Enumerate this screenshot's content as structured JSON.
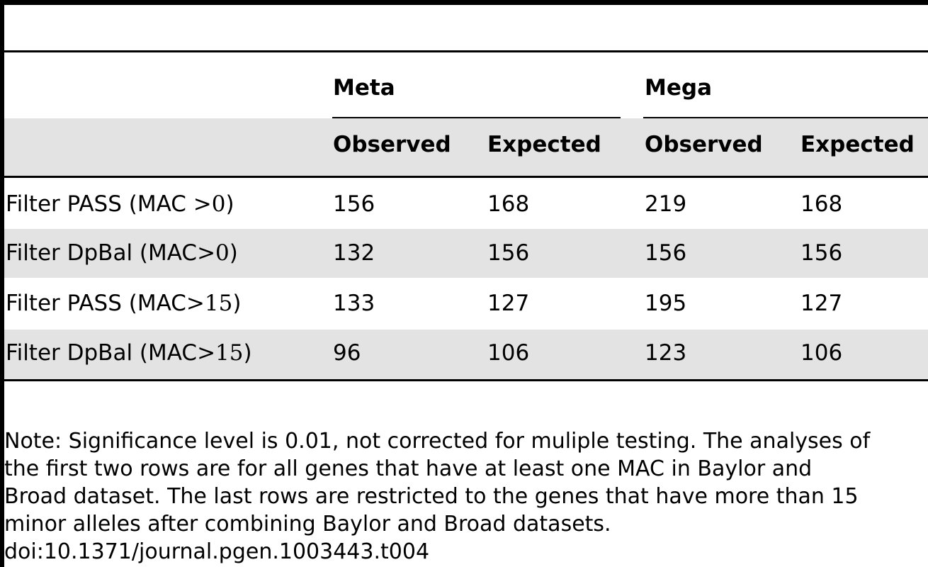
{
  "table": {
    "groups": [
      "Meta",
      "Mega"
    ],
    "columns": [
      "Observed",
      "Expected",
      "Observed",
      "Expected"
    ],
    "rows": [
      {
        "label_prefix": "Filter PASS (MAC ",
        "op": ">",
        "threshold": "0",
        "label_suffix": ")",
        "values": [
          "156",
          "168",
          "219",
          "168"
        ]
      },
      {
        "label_prefix": "Filter DpBal (MAC",
        "op": ">",
        "threshold": "0",
        "label_suffix": ")",
        "values": [
          "132",
          "156",
          "156",
          "156"
        ]
      },
      {
        "label_prefix": "Filter PASS (MAC",
        "op": ">",
        "threshold": "15",
        "label_suffix": ")",
        "values": [
          "133",
          "127",
          "195",
          "127"
        ]
      },
      {
        "label_prefix": "Filter DpBal (MAC",
        "op": ">",
        "threshold": "15",
        "label_suffix": ")",
        "values": [
          "96",
          "106",
          "123",
          "106"
        ]
      }
    ]
  },
  "footnote": {
    "lines": [
      "Note: Significance level is 0.01, not corrected for muliple testing. The analyses of",
      "the first two rows are for all genes that have at least one MAC in Baylor and",
      "Broad dataset. The last rows are restricted to the genes that have more than 15",
      "minor alleles after combining Baylor and Broad datasets."
    ],
    "doi": "doi:10.1371/journal.pgen.1003443.t004"
  }
}
